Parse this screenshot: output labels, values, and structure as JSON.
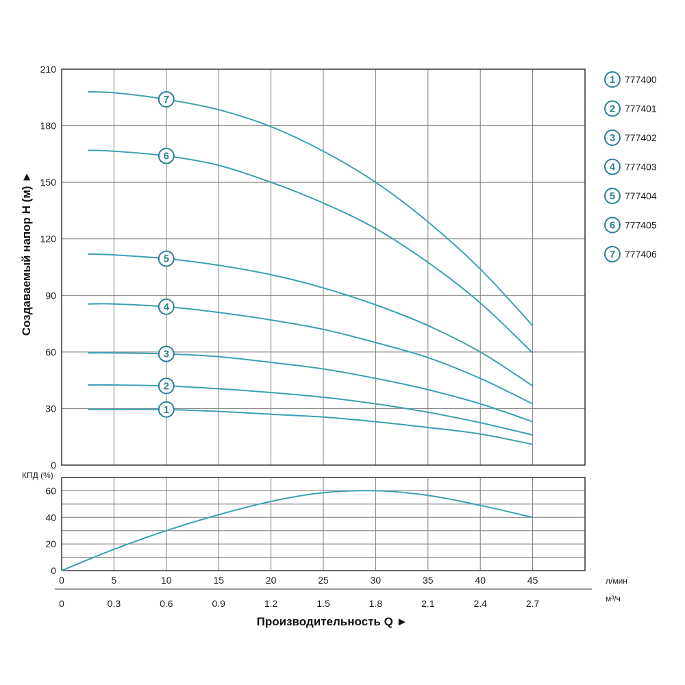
{
  "chart_data": [
    {
      "type": "line",
      "ylabel": "Создаваемый напор H (м) ►",
      "xlabel": "Производительность Q ►",
      "x_units": [
        "л/мин",
        "м³/ч"
      ],
      "x_ticks_lmin": [
        0,
        5,
        10,
        15,
        20,
        25,
        30,
        35,
        40,
        45
      ],
      "x_ticks_m3h": [
        "0",
        "0.3",
        "0.6",
        "0.9",
        "1.2",
        "1.5",
        "1.8",
        "2.1",
        "2.4",
        "2.7"
      ],
      "xlim": [
        0,
        50
      ],
      "ylim": [
        0,
        210
      ],
      "y_ticks": [
        0,
        30,
        60,
        90,
        120,
        150,
        180,
        210
      ],
      "grid": true,
      "legend_position": "right",
      "marker_x": 10,
      "x": [
        2.5,
        5,
        10,
        15,
        20,
        25,
        30,
        35,
        40,
        45
      ],
      "series": [
        {
          "name": "777400",
          "marker": "1",
          "values": [
            29.5,
            29.5,
            29.5,
            28.5,
            27,
            25.5,
            23,
            20,
            16.5,
            11
          ]
        },
        {
          "name": "777401",
          "marker": "2",
          "values": [
            42.5,
            42.5,
            42,
            40.5,
            38.5,
            36,
            32.5,
            28,
            22.5,
            16
          ]
        },
        {
          "name": "777402",
          "marker": "3",
          "values": [
            59.5,
            59.5,
            59,
            57.5,
            54.5,
            51,
            46,
            40,
            32.5,
            23
          ]
        },
        {
          "name": "777403",
          "marker": "4",
          "values": [
            85.5,
            85.5,
            84,
            81,
            77,
            72,
            65,
            57,
            46,
            32.5
          ]
        },
        {
          "name": "777404",
          "marker": "5",
          "values": [
            112,
            111.5,
            109.5,
            106,
            101,
            94,
            85,
            74,
            60,
            42
          ]
        },
        {
          "name": "777405",
          "marker": "6",
          "values": [
            167,
            166.5,
            164,
            159,
            150,
            139,
            125.5,
            107.5,
            86,
            59.5
          ]
        },
        {
          "name": "777406",
          "marker": "7",
          "values": [
            198,
            197.5,
            194,
            188.5,
            179.5,
            166.5,
            150,
            129,
            104,
            74
          ]
        }
      ]
    },
    {
      "type": "line",
      "ylabel": "КПД (%)",
      "ylim": [
        0,
        70
      ],
      "y_ticks": [
        0,
        20,
        40,
        60
      ],
      "grid": true,
      "series": [
        {
          "name": "",
          "x": [
            0,
            5,
            10,
            15,
            20,
            25,
            30,
            35,
            40,
            45
          ],
          "values": [
            0,
            16,
            30,
            42,
            52,
            58.5,
            60,
            56.5,
            49,
            40
          ]
        }
      ]
    }
  ],
  "colors": {
    "curve": "#3c9fb4",
    "marker": "#2b7f9a",
    "grid": "#7a7a7a",
    "frame": "#333333"
  }
}
